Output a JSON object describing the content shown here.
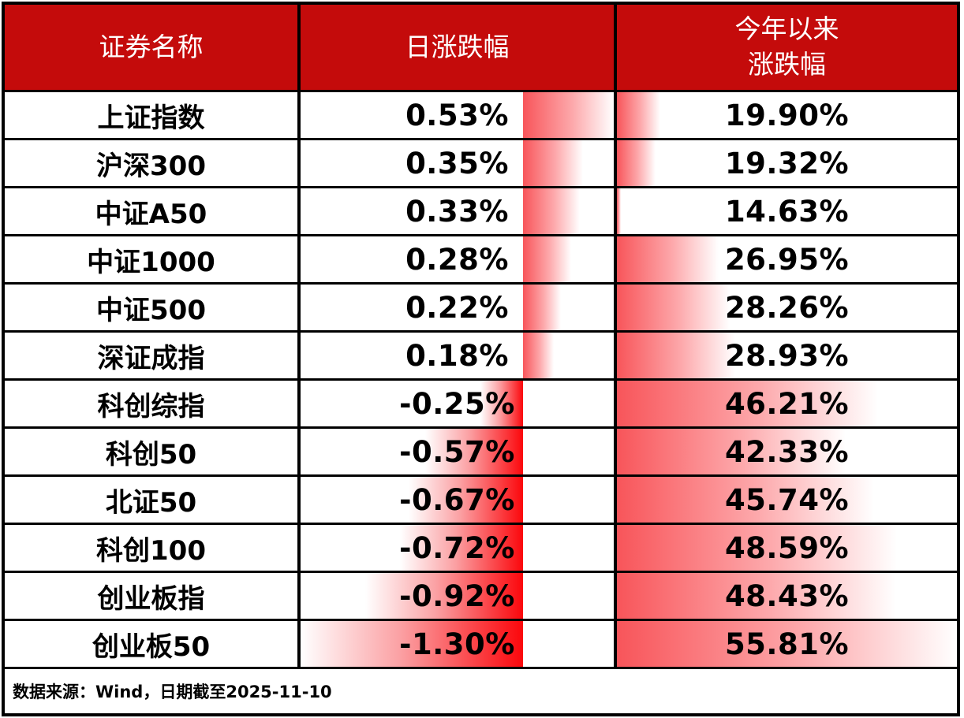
{
  "table": {
    "headers": [
      "证券名称",
      "日涨跌幅",
      "今年以来\n涨跌幅"
    ]
  },
  "footer": {
    "source_note": "数据来源：Wind，日期截至2025-11-10"
  },
  "colors": {
    "header_bg": "#c40b0b",
    "header_text": "#ffffff",
    "border": "#000000",
    "bar_positive": "#f8555a",
    "bar_negative_solid": "#fb070c",
    "text": "#000000"
  },
  "chart_data": {
    "type": "table",
    "title": "",
    "columns": [
      "证券名称",
      "日涨跌幅",
      "今年以来涨跌幅"
    ],
    "legend_position": "none",
    "grid": true,
    "daily_axis": {
      "min": -1.3,
      "max": 0.53,
      "bar_style": "gradient-databar",
      "axis_note": "zero axis inside cell, negatives extend left"
    },
    "ytd_axis": {
      "min": 14.63,
      "max": 55.81,
      "bar_style": "gradient-databar",
      "axis_note": "bars grow from left edge"
    },
    "rows": [
      {
        "name": "上证指数",
        "daily": 0.53,
        "daily_label": "0.53%",
        "ytd": 19.9,
        "ytd_label": "19.90%"
      },
      {
        "name": "沪深300",
        "daily": 0.35,
        "daily_label": "0.35%",
        "ytd": 19.32,
        "ytd_label": "19.32%"
      },
      {
        "name": "中证A50",
        "daily": 0.33,
        "daily_label": "0.33%",
        "ytd": 14.63,
        "ytd_label": "14.63%"
      },
      {
        "name": "中证1000",
        "daily": 0.28,
        "daily_label": "0.28%",
        "ytd": 26.95,
        "ytd_label": "26.95%"
      },
      {
        "name": "中证500",
        "daily": 0.22,
        "daily_label": "0.22%",
        "ytd": 28.26,
        "ytd_label": "28.26%"
      },
      {
        "name": "深证成指",
        "daily": 0.18,
        "daily_label": "0.18%",
        "ytd": 28.93,
        "ytd_label": "28.93%"
      },
      {
        "name": "科创综指",
        "daily": -0.25,
        "daily_label": "-0.25%",
        "ytd": 46.21,
        "ytd_label": "46.21%"
      },
      {
        "name": "科创50",
        "daily": -0.57,
        "daily_label": "-0.57%",
        "ytd": 42.33,
        "ytd_label": "42.33%"
      },
      {
        "name": "北证50",
        "daily": -0.67,
        "daily_label": "-0.67%",
        "ytd": 45.74,
        "ytd_label": "45.74%"
      },
      {
        "name": "科创100",
        "daily": -0.72,
        "daily_label": "-0.72%",
        "ytd": 48.59,
        "ytd_label": "48.59%"
      },
      {
        "name": "创业板指",
        "daily": -0.92,
        "daily_label": "-0.92%",
        "ytd": 48.43,
        "ytd_label": "48.43%"
      },
      {
        "name": "创业板50",
        "daily": -1.3,
        "daily_label": "-1.30%",
        "ytd": 55.81,
        "ytd_label": "55.81%"
      }
    ]
  }
}
